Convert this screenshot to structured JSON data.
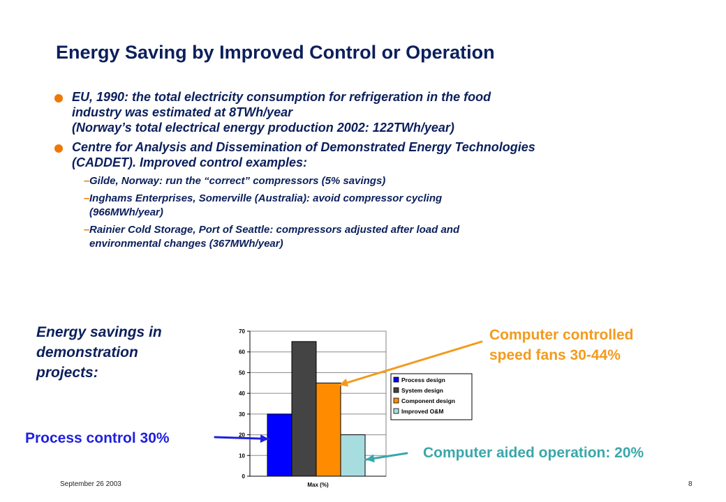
{
  "slide": {
    "title": "Energy Saving by Improved Control or Operation",
    "bullets": [
      {
        "lines": [
          "EU, 1990: the total electricity consumption for refrigeration in the food",
          "industry was estimated at 8TWh/year",
          "(Norway’s total electrical energy production 2002: 122TWh/year)"
        ]
      },
      {
        "lines": [
          "Centre for Analysis and Dissemination of Demonstrated Energy Technologies",
          "(CADDET). Improved control examples:"
        ],
        "subitems": [
          {
            "lines": [
              "Gilde, Norway: run the “correct” compressors (5% savings)"
            ]
          },
          {
            "lines": [
              "Inghams Enterprises, Somerville (Australia): avoid compressor cycling",
              "(966MWh/year)"
            ]
          },
          {
            "lines": [
              "Rainier Cold Storage, Port of Seattle: compressors adjusted after load and",
              "environmental changes (367MWh/year)"
            ]
          }
        ]
      }
    ],
    "chart_caption_lines": [
      "Energy savings in",
      "demonstration",
      "projects:"
    ],
    "annotations": {
      "fans_line1": "Computer controlled",
      "fans_line2": "speed fans 30-44%",
      "process": "Process control 30%",
      "computer_aided": "Computer aided operation: 20%"
    },
    "footer": {
      "date": "September 26 2003",
      "page": "8"
    },
    "colors": {
      "title": "#0b1f5c",
      "bullet_dot": "#f07800",
      "fans_annotation": "#f39a1c",
      "process_annotation": "#1f1fe0",
      "computer_aided_annotation": "#3aa7aa"
    }
  },
  "chart_data": {
    "type": "bar",
    "xlabel": "Max (%)",
    "ylabel": "",
    "ylim": [
      0,
      70
    ],
    "yticks": [
      0,
      10,
      20,
      30,
      40,
      50,
      60,
      70
    ],
    "grid": true,
    "legend_position": "right",
    "series": [
      {
        "name": "Process design",
        "value": 30,
        "color": "#0000ff"
      },
      {
        "name": "System design",
        "value": 65,
        "color": "#444444"
      },
      {
        "name": "Component design",
        "value": 45,
        "color": "#ff8c00"
      },
      {
        "name": "Improved O&M",
        "value": 20,
        "color": "#a8dde0"
      }
    ]
  }
}
